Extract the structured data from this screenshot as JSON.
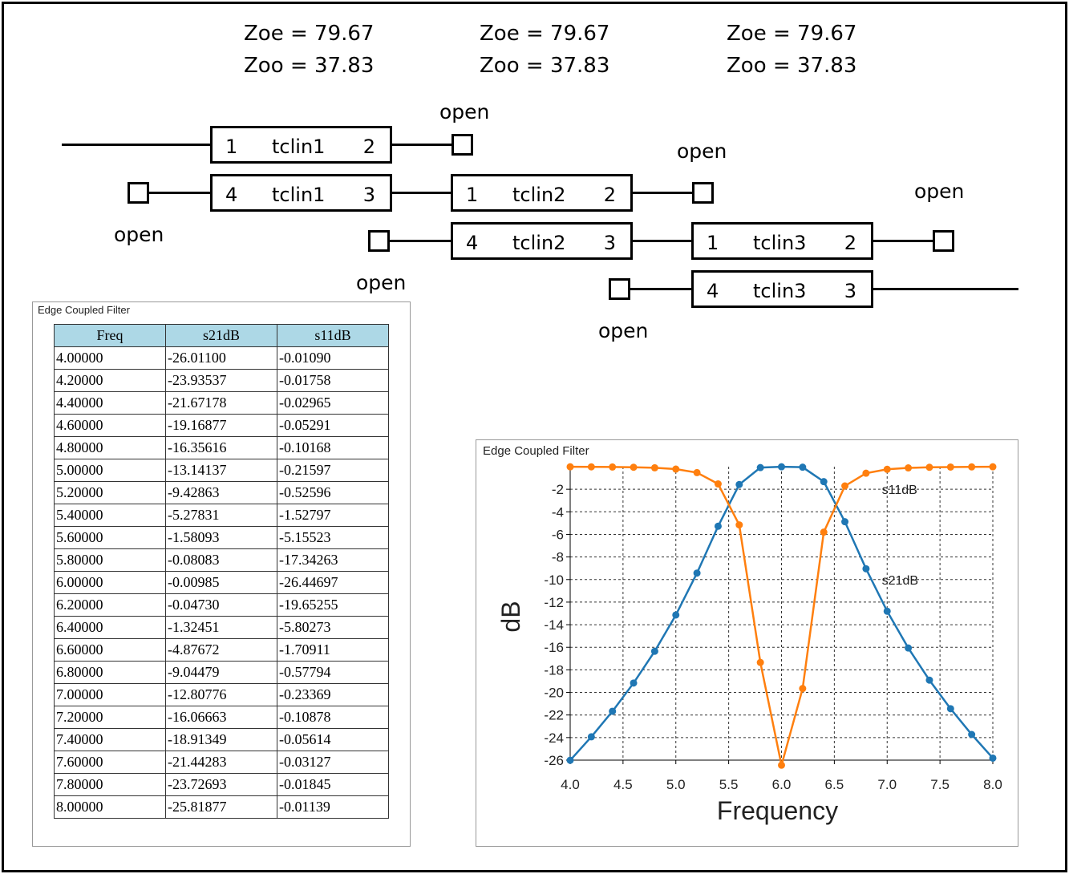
{
  "diagram": {
    "impedances": [
      {
        "zoe": "Zoe = 79.67",
        "zoo": "Zoo = 37.83"
      },
      {
        "zoe": "Zoe = 79.67",
        "zoo": "Zoo = 37.83"
      },
      {
        "zoe": "Zoe = 79.67",
        "zoo": "Zoo = 37.83"
      }
    ],
    "open_label": "open",
    "blocks": [
      {
        "left": "1",
        "name": "tclin1",
        "right": "2"
      },
      {
        "left": "4",
        "name": "tclin1",
        "right": "3"
      },
      {
        "left": "1",
        "name": "tclin2",
        "right": "2"
      },
      {
        "left": "4",
        "name": "tclin2",
        "right": "3"
      },
      {
        "left": "1",
        "name": "tclin3",
        "right": "2"
      },
      {
        "left": "4",
        "name": "tclin3",
        "right": "3"
      }
    ]
  },
  "table_panel": {
    "title": "Edge Coupled Filter",
    "headers": [
      "Freq",
      "s21dB",
      "s11dB"
    ],
    "rows": [
      [
        "4.00000",
        "-26.01100",
        "-0.01090"
      ],
      [
        "4.20000",
        "-23.93537",
        "-0.01758"
      ],
      [
        "4.40000",
        "-21.67178",
        "-0.02965"
      ],
      [
        "4.60000",
        "-19.16877",
        "-0.05291"
      ],
      [
        "4.80000",
        "-16.35616",
        "-0.10168"
      ],
      [
        "5.00000",
        "-13.14137",
        "-0.21597"
      ],
      [
        "5.20000",
        "-9.42863",
        "-0.52596"
      ],
      [
        "5.40000",
        "-5.27831",
        "-1.52797"
      ],
      [
        "5.60000",
        "-1.58093",
        "-5.15523"
      ],
      [
        "5.80000",
        "-0.08083",
        "-17.34263"
      ],
      [
        "6.00000",
        "-0.00985",
        "-26.44697"
      ],
      [
        "6.20000",
        "-0.04730",
        "-19.65255"
      ],
      [
        "6.40000",
        "-1.32451",
        "-5.80273"
      ],
      [
        "6.60000",
        "-4.87672",
        "-1.70911"
      ],
      [
        "6.80000",
        "-9.04479",
        "-0.57794"
      ],
      [
        "7.00000",
        "-12.80776",
        "-0.23369"
      ],
      [
        "7.20000",
        "-16.06663",
        "-0.10878"
      ],
      [
        "7.40000",
        "-18.91349",
        "-0.05614"
      ],
      [
        "7.60000",
        "-21.44283",
        "-0.03127"
      ],
      [
        "7.80000",
        "-23.72693",
        "-0.01845"
      ],
      [
        "8.00000",
        "-25.81877",
        "-0.01139"
      ]
    ]
  },
  "chart_data": {
    "type": "line",
    "title": "Edge Coupled Filter",
    "xlabel": "Frequency",
    "ylabel": "dB",
    "xlim": [
      4.0,
      8.0
    ],
    "ylim": [
      -26,
      0
    ],
    "xticks": [
      "4.0",
      "4.5",
      "5.0",
      "5.5",
      "6.0",
      "6.5",
      "7.0",
      "7.5",
      "8.0"
    ],
    "yticks": [
      "-2",
      "-4",
      "-6",
      "-8",
      "-10",
      "-12",
      "-14",
      "-16",
      "-18",
      "-20",
      "-22",
      "-24",
      "-26"
    ],
    "grid": true,
    "x": [
      4.0,
      4.2,
      4.4,
      4.6,
      4.8,
      5.0,
      5.2,
      5.4,
      5.6,
      5.8,
      6.0,
      6.2,
      6.4,
      6.6,
      6.8,
      7.0,
      7.2,
      7.4,
      7.6,
      7.8,
      8.0
    ],
    "series": [
      {
        "name": "s21dB",
        "color": "#1f77b4",
        "values": [
          -26.011,
          -23.93537,
          -21.67178,
          -19.16877,
          -16.35616,
          -13.14137,
          -9.42863,
          -5.27831,
          -1.58093,
          -0.08083,
          -0.00985,
          -0.0473,
          -1.32451,
          -4.87672,
          -9.04479,
          -12.80776,
          -16.06663,
          -18.91349,
          -21.44283,
          -23.72693,
          -25.81877
        ]
      },
      {
        "name": "s11dB",
        "color": "#ff7f0e",
        "values": [
          -0.0109,
          -0.01758,
          -0.02965,
          -0.05291,
          -0.10168,
          -0.21597,
          -0.52596,
          -1.52797,
          -5.15523,
          -17.34263,
          -26.44697,
          -19.65255,
          -5.80273,
          -1.70911,
          -0.57794,
          -0.23369,
          -0.10878,
          -0.05614,
          -0.03127,
          -0.01845,
          -0.01139
        ]
      }
    ],
    "annotations": [
      "s11dB",
      "s21dB"
    ]
  }
}
